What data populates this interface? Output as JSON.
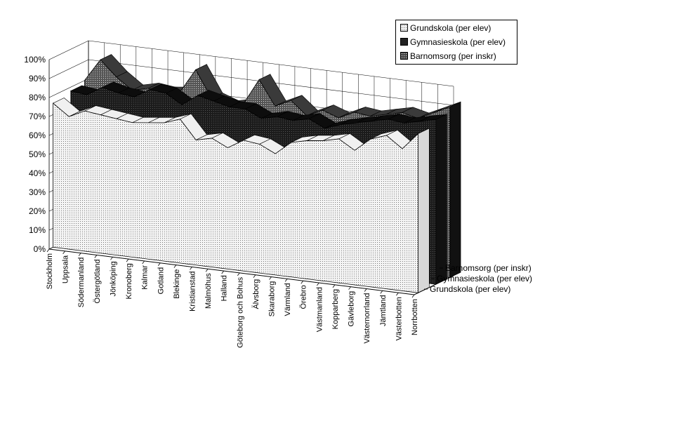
{
  "chart_data": {
    "type": "area",
    "view": "3d",
    "categories": [
      "Stockholm",
      "Uppsala",
      "Södermanland",
      "Östergötland",
      "Jönköping",
      "Kronoberg",
      "Kalmar",
      "Gotland",
      "Blekinge",
      "Kristianstad",
      "Malmöhus",
      "Halland",
      "Göteborg och Bohus",
      "Älvsborg",
      "Skaraborg",
      "Värmland",
      "Örebro",
      "Västmanland",
      "Kopparberg",
      "Gävleborg",
      "Västernorrland",
      "Jämtland",
      "Västerbotten",
      "Norrbotten"
    ],
    "series": [
      {
        "name": "Grundskola (per elev)",
        "values": [
          76,
          70,
          74,
          73,
          72,
          71,
          72,
          73,
          76,
          66,
          68,
          64,
          69,
          68,
          64,
          71,
          73,
          74,
          76,
          71,
          78,
          81,
          75,
          84
        ]
      },
      {
        "name": "Gymnasieskola (per elev)",
        "values": [
          78,
          77,
          82,
          80,
          79,
          84,
          83,
          78,
          84,
          82,
          80,
          80,
          76,
          78,
          77,
          79,
          75,
          78,
          80,
          82,
          84,
          83,
          85,
          87
        ]
      },
      {
        "name": "Barnomsorg (per inskr)",
        "values": [
          80,
          92,
          84,
          78,
          80,
          79,
          80,
          93,
          79,
          76,
          78,
          92,
          79,
          83,
          76,
          80,
          77,
          81,
          80,
          82,
          84,
          82,
          86,
          90
        ]
      }
    ],
    "yticks": [
      "0%",
      "10%",
      "20%",
      "30%",
      "40%",
      "50%",
      "60%",
      "70%",
      "80%",
      "90%",
      "100%"
    ],
    "ylim": [
      0,
      100
    ],
    "depth_labels": [
      "Barnomsorg (per inskr)",
      "Gymnasieskola (per elev)",
      "Grundskola (per elev)"
    ],
    "legend": {
      "position": "top-right",
      "items": [
        "Grundskola (per elev)",
        "Gymnasieskola (per elev)",
        "Barnomsorg (per inskr)"
      ]
    },
    "grid": true
  }
}
